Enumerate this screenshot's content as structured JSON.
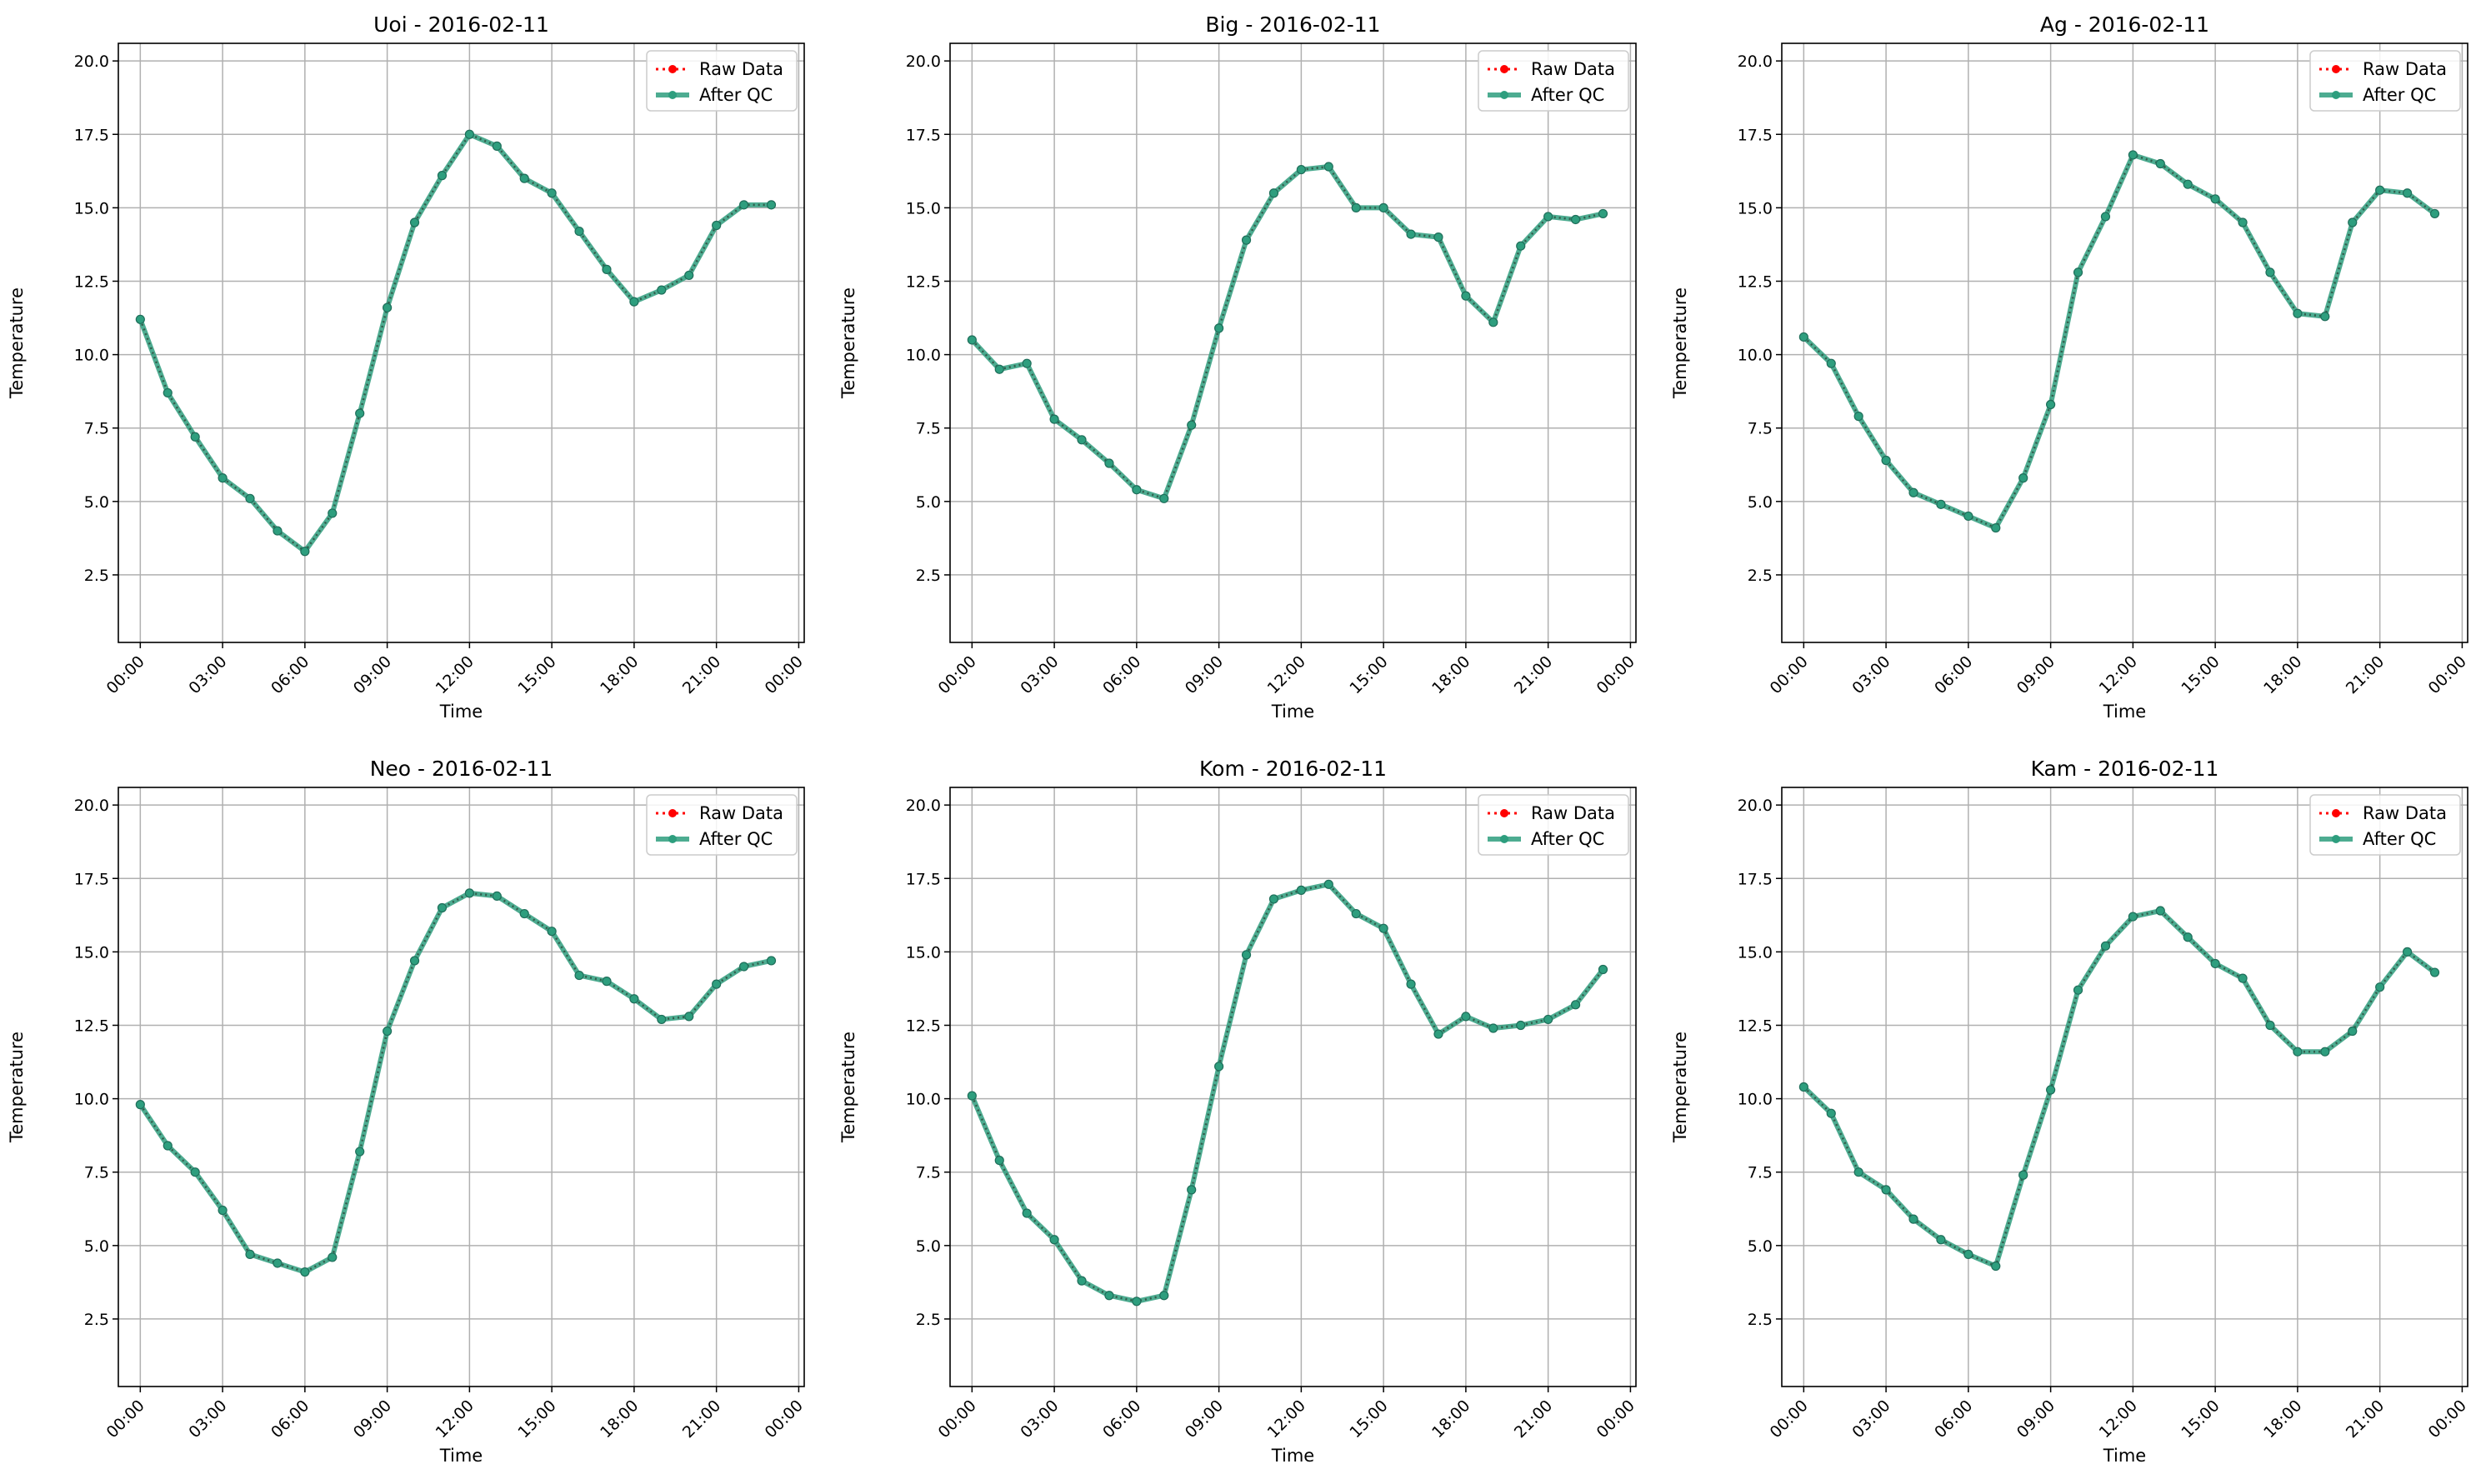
{
  "colors": {
    "raw": "#ff0000",
    "qc": "#2e9e7e",
    "grid": "#b0b0b0",
    "axes": "#000000",
    "background": "#ffffff"
  },
  "legend": {
    "raw_label": "Raw Data",
    "qc_label": "After QC",
    "placement": "upper right"
  },
  "chart_data": [
    {
      "type": "line",
      "title": "Uoi - 2016-02-11",
      "xlabel": "Time",
      "ylabel": "Temperature",
      "ylim": [
        0.2,
        20.6
      ],
      "yticks": [
        "2.5",
        "5.0",
        "7.5",
        "10.0",
        "12.5",
        "15.0",
        "17.5",
        "20.0"
      ],
      "xticks": [
        "00:00",
        "03:00",
        "06:00",
        "09:00",
        "12:00",
        "15:00",
        "18:00",
        "21:00",
        "00:00"
      ],
      "grid": true,
      "x": [
        0,
        1,
        2,
        3,
        4,
        5,
        6,
        7,
        8,
        9,
        10,
        11,
        12,
        13,
        14,
        15,
        16,
        17,
        18,
        19,
        20,
        21,
        22,
        23
      ],
      "series": [
        {
          "name": "Raw Data",
          "values": [
            11.2,
            8.7,
            7.2,
            5.8,
            5.1,
            4.0,
            3.3,
            4.6,
            8.0,
            11.6,
            14.5,
            16.1,
            17.5,
            17.1,
            16.0,
            15.5,
            14.2,
            12.9,
            11.8,
            12.2,
            12.7,
            14.4,
            15.1,
            15.1
          ]
        },
        {
          "name": "After QC",
          "values": [
            11.2,
            8.7,
            7.2,
            5.8,
            5.1,
            4.0,
            3.3,
            4.6,
            8.0,
            11.6,
            14.5,
            16.1,
            17.5,
            17.1,
            16.0,
            15.5,
            14.2,
            12.9,
            11.8,
            12.2,
            12.7,
            14.4,
            15.1,
            15.1
          ]
        }
      ]
    },
    {
      "type": "line",
      "title": "Big - 2016-02-11",
      "xlabel": "Time",
      "ylabel": "Temperature",
      "ylim": [
        0.2,
        20.6
      ],
      "yticks": [
        "2.5",
        "5.0",
        "7.5",
        "10.0",
        "12.5",
        "15.0",
        "17.5",
        "20.0"
      ],
      "xticks": [
        "00:00",
        "03:00",
        "06:00",
        "09:00",
        "12:00",
        "15:00",
        "18:00",
        "21:00",
        "00:00"
      ],
      "grid": true,
      "x": [
        0,
        1,
        2,
        3,
        4,
        5,
        6,
        7,
        8,
        9,
        10,
        11,
        12,
        13,
        14,
        15,
        16,
        17,
        18,
        19,
        20,
        21,
        22,
        23
      ],
      "series": [
        {
          "name": "Raw Data",
          "values": [
            10.5,
            9.5,
            9.7,
            7.8,
            7.1,
            6.3,
            5.4,
            5.1,
            7.6,
            10.9,
            13.9,
            15.5,
            16.3,
            16.4,
            15.0,
            15.0,
            14.1,
            14.0,
            12.0,
            11.1,
            13.7,
            14.7,
            14.6,
            14.8
          ]
        },
        {
          "name": "After QC",
          "values": [
            10.5,
            9.5,
            9.7,
            7.8,
            7.1,
            6.3,
            5.4,
            5.1,
            7.6,
            10.9,
            13.9,
            15.5,
            16.3,
            16.4,
            15.0,
            15.0,
            14.1,
            14.0,
            12.0,
            11.1,
            13.7,
            14.7,
            14.6,
            14.8
          ]
        }
      ]
    },
    {
      "type": "line",
      "title": "Ag - 2016-02-11",
      "xlabel": "Time",
      "ylabel": "Temperature",
      "ylim": [
        0.2,
        20.6
      ],
      "yticks": [
        "2.5",
        "5.0",
        "7.5",
        "10.0",
        "12.5",
        "15.0",
        "17.5",
        "20.0"
      ],
      "xticks": [
        "00:00",
        "03:00",
        "06:00",
        "09:00",
        "12:00",
        "15:00",
        "18:00",
        "21:00",
        "00:00"
      ],
      "grid": true,
      "x": [
        0,
        1,
        2,
        3,
        4,
        5,
        6,
        7,
        8,
        9,
        10,
        11,
        12,
        13,
        14,
        15,
        16,
        17,
        18,
        19,
        20,
        21,
        22,
        23
      ],
      "series": [
        {
          "name": "Raw Data",
          "values": [
            10.6,
            9.7,
            7.9,
            6.4,
            5.3,
            4.9,
            4.5,
            4.1,
            5.8,
            8.3,
            12.8,
            14.7,
            16.8,
            16.5,
            15.8,
            15.3,
            14.5,
            12.8,
            11.4,
            11.3,
            14.5,
            15.6,
            15.5,
            14.8
          ]
        },
        {
          "name": "After QC",
          "values": [
            10.6,
            9.7,
            7.9,
            6.4,
            5.3,
            4.9,
            4.5,
            4.1,
            5.8,
            8.3,
            12.8,
            14.7,
            16.8,
            16.5,
            15.8,
            15.3,
            14.5,
            12.8,
            11.4,
            11.3,
            14.5,
            15.6,
            15.5,
            14.8
          ]
        }
      ]
    },
    {
      "type": "line",
      "title": "Neo - 2016-02-11",
      "xlabel": "Time",
      "ylabel": "Temperature",
      "ylim": [
        0.2,
        20.6
      ],
      "yticks": [
        "2.5",
        "5.0",
        "7.5",
        "10.0",
        "12.5",
        "15.0",
        "17.5",
        "20.0"
      ],
      "xticks": [
        "00:00",
        "03:00",
        "06:00",
        "09:00",
        "12:00",
        "15:00",
        "18:00",
        "21:00",
        "00:00"
      ],
      "grid": true,
      "x": [
        0,
        1,
        2,
        3,
        4,
        5,
        6,
        7,
        8,
        9,
        10,
        11,
        12,
        13,
        14,
        15,
        16,
        17,
        18,
        19,
        20,
        21,
        22,
        23
      ],
      "series": [
        {
          "name": "Raw Data",
          "values": [
            9.8,
            8.4,
            7.5,
            6.2,
            4.7,
            4.4,
            4.1,
            4.6,
            8.2,
            12.3,
            14.7,
            16.5,
            17.0,
            16.9,
            16.3,
            15.7,
            14.2,
            14.0,
            13.4,
            12.7,
            12.8,
            13.9,
            14.5,
            14.7
          ]
        },
        {
          "name": "After QC",
          "values": [
            9.8,
            8.4,
            7.5,
            6.2,
            4.7,
            4.4,
            4.1,
            4.6,
            8.2,
            12.3,
            14.7,
            16.5,
            17.0,
            16.9,
            16.3,
            15.7,
            14.2,
            14.0,
            13.4,
            12.7,
            12.8,
            13.9,
            14.5,
            14.7
          ]
        }
      ]
    },
    {
      "type": "line",
      "title": "Kom - 2016-02-11",
      "xlabel": "Time",
      "ylabel": "Temperature",
      "ylim": [
        0.2,
        20.6
      ],
      "yticks": [
        "2.5",
        "5.0",
        "7.5",
        "10.0",
        "12.5",
        "15.0",
        "17.5",
        "20.0"
      ],
      "xticks": [
        "00:00",
        "03:00",
        "06:00",
        "09:00",
        "12:00",
        "15:00",
        "18:00",
        "21:00",
        "00:00"
      ],
      "grid": true,
      "x": [
        0,
        1,
        2,
        3,
        4,
        5,
        6,
        7,
        8,
        9,
        10,
        11,
        12,
        13,
        14,
        15,
        16,
        17,
        18,
        19,
        20,
        21,
        22,
        23
      ],
      "series": [
        {
          "name": "Raw Data",
          "values": [
            10.1,
            7.9,
            6.1,
            5.2,
            3.8,
            3.3,
            3.1,
            3.3,
            6.9,
            11.1,
            14.9,
            16.8,
            17.1,
            17.3,
            16.3,
            15.8,
            13.9,
            12.2,
            12.8,
            12.4,
            12.5,
            12.7,
            13.2,
            14.4
          ]
        },
        {
          "name": "After QC",
          "values": [
            10.1,
            7.9,
            6.1,
            5.2,
            3.8,
            3.3,
            3.1,
            3.3,
            6.9,
            11.1,
            14.9,
            16.8,
            17.1,
            17.3,
            16.3,
            15.8,
            13.9,
            12.2,
            12.8,
            12.4,
            12.5,
            12.7,
            13.2,
            14.4
          ]
        }
      ]
    },
    {
      "type": "line",
      "title": "Kam - 2016-02-11",
      "xlabel": "Time",
      "ylabel": "Temperature",
      "ylim": [
        0.2,
        20.6
      ],
      "yticks": [
        "2.5",
        "5.0",
        "7.5",
        "10.0",
        "12.5",
        "15.0",
        "17.5",
        "20.0"
      ],
      "xticks": [
        "00:00",
        "03:00",
        "06:00",
        "09:00",
        "12:00",
        "15:00",
        "18:00",
        "21:00",
        "00:00"
      ],
      "grid": true,
      "x": [
        0,
        1,
        2,
        3,
        4,
        5,
        6,
        7,
        8,
        9,
        10,
        11,
        12,
        13,
        14,
        15,
        16,
        17,
        18,
        19,
        20,
        21,
        22,
        23
      ],
      "series": [
        {
          "name": "Raw Data",
          "values": [
            10.4,
            9.5,
            7.5,
            6.9,
            5.9,
            5.2,
            4.7,
            4.3,
            7.4,
            10.3,
            13.7,
            15.2,
            16.2,
            16.4,
            15.5,
            14.6,
            14.1,
            12.5,
            11.6,
            11.6,
            12.3,
            13.8,
            15.0,
            14.3
          ]
        },
        {
          "name": "After QC",
          "values": [
            10.4,
            9.5,
            7.5,
            6.9,
            5.9,
            5.2,
            4.7,
            4.3,
            7.4,
            10.3,
            13.7,
            15.2,
            16.2,
            16.4,
            15.5,
            14.6,
            14.1,
            12.5,
            11.6,
            11.6,
            12.3,
            13.8,
            15.0,
            14.3
          ]
        }
      ]
    }
  ]
}
